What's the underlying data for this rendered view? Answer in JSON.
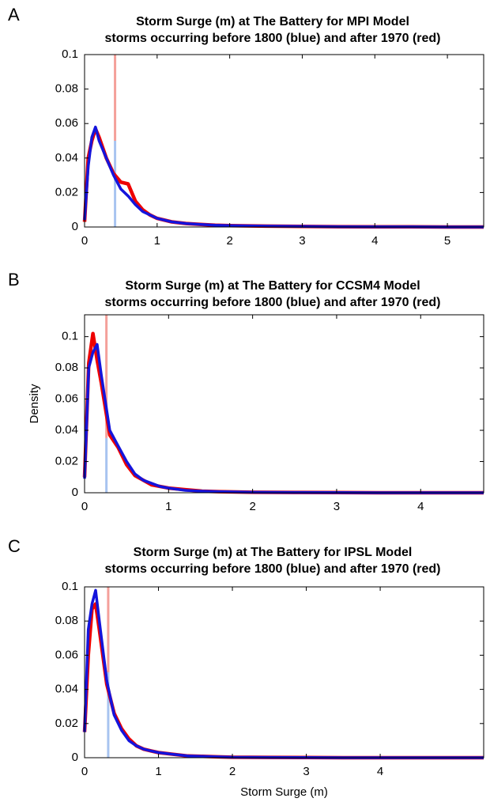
{
  "chart_data": [
    {
      "type": "line",
      "panel": "A",
      "title": [
        "Storm Surge (m) at The Battery for MPI Model",
        "storms occurring before 1800 (blue) and after 1970 (red)"
      ],
      "x": [
        0,
        0.05,
        0.1,
        0.15,
        0.2,
        0.3,
        0.4,
        0.5,
        0.6,
        0.7,
        0.8,
        0.9,
        1.0,
        1.2,
        1.4,
        1.6,
        1.8,
        2.0,
        2.5,
        3,
        3.5,
        4,
        4.5,
        5,
        5.5
      ],
      "series": [
        {
          "color": "#ee0000",
          "values": [
            0.003,
            0.04,
            0.05,
            0.057,
            0.052,
            0.04,
            0.031,
            0.026,
            0.025,
            0.015,
            0.01,
            0.007,
            0.005,
            0.003,
            0.002,
            0.0015,
            0.001,
            0.0008,
            0.0005,
            0.0003,
            0.0002,
            0.0001,
            0.0001,
            0,
            0
          ]
        },
        {
          "color": "#1414dc",
          "values": [
            0.004,
            0.035,
            0.052,
            0.058,
            0.05,
            0.04,
            0.03,
            0.022,
            0.018,
            0.013,
            0.009,
            0.007,
            0.005,
            0.003,
            0.002,
            0.0015,
            0.001,
            0.0008,
            0.0005,
            0.0003,
            0.0002,
            0.0001,
            0.0001,
            0,
            0
          ]
        }
      ],
      "vlines": [
        {
          "color": "#f4a09a",
          "x": 0.42,
          "y": [
            0.05,
            0.1
          ]
        },
        {
          "color": "#a8c4f0",
          "x": 0.42,
          "y": [
            0,
            0.05
          ]
        }
      ],
      "xlim": [
        0,
        5.5
      ],
      "xticks": [
        0,
        1,
        2,
        3,
        4,
        5
      ],
      "ylim": [
        0,
        0.1
      ],
      "yticks": [
        0,
        0.02,
        0.04,
        0.06,
        0.08,
        0.1
      ]
    },
    {
      "type": "line",
      "panel": "B",
      "title": [
        "Storm Surge (m) at The Battery for CCSM4 Model",
        "storms occurring before 1800 (blue) and after 1970 (red)"
      ],
      "ylabel": "Density",
      "x": [
        0,
        0.05,
        0.1,
        0.15,
        0.2,
        0.3,
        0.4,
        0.5,
        0.6,
        0.7,
        0.8,
        0.9,
        1.0,
        1.2,
        1.4,
        1.6,
        1.8,
        2.0,
        2.5,
        3,
        3.5,
        4,
        4.5,
        4.75
      ],
      "series": [
        {
          "color": "#ee0000",
          "values": [
            0.01,
            0.083,
            0.102,
            0.085,
            0.07,
            0.037,
            0.029,
            0.018,
            0.011,
            0.008,
            0.005,
            0.004,
            0.003,
            0.002,
            0.001,
            0.0007,
            0.0005,
            0.0003,
            0.0002,
            0.0001,
            0,
            0,
            0,
            0
          ]
        },
        {
          "color": "#1414dc",
          "values": [
            0.009,
            0.08,
            0.09,
            0.095,
            0.075,
            0.04,
            0.03,
            0.02,
            0.012,
            0.008,
            0.006,
            0.004,
            0.003,
            0.0015,
            0.001,
            0.0007,
            0.0005,
            0.0003,
            0.0002,
            0.0001,
            0,
            0,
            0,
            0
          ]
        }
      ],
      "vlines": [
        {
          "color": "#f4a09a",
          "x": 0.26,
          "y": [
            0.035,
            0.114
          ]
        },
        {
          "color": "#a8c4f0",
          "x": 0.26,
          "y": [
            0,
            0.035
          ]
        }
      ],
      "xlim": [
        0,
        4.75
      ],
      "xticks": [
        0,
        1,
        2,
        3,
        4
      ],
      "ylim": [
        0,
        0.114
      ],
      "yticks": [
        0,
        0.02,
        0.04,
        0.06,
        0.08,
        0.1
      ]
    },
    {
      "type": "line",
      "panel": "C",
      "title": [
        "Storm Surge (m) at The Battery for IPSL Model",
        "storms occurring before 1800 (blue) and after 1970 (red)"
      ],
      "xlabel": "Storm Surge (m)",
      "x": [
        0,
        0.05,
        0.1,
        0.15,
        0.2,
        0.3,
        0.4,
        0.5,
        0.6,
        0.7,
        0.8,
        0.9,
        1.0,
        1.2,
        1.4,
        1.6,
        1.8,
        2.0,
        2.5,
        3,
        3.5,
        4,
        4.5,
        5,
        5.4
      ],
      "series": [
        {
          "color": "#ee0000",
          "values": [
            0.015,
            0.06,
            0.087,
            0.09,
            0.075,
            0.043,
            0.026,
            0.017,
            0.011,
            0.007,
            0.005,
            0.004,
            0.003,
            0.002,
            0.001,
            0.0008,
            0.0005,
            0.0003,
            0.0002,
            0.0001,
            0,
            0,
            0,
            0,
            0
          ]
        },
        {
          "color": "#1414dc",
          "values": [
            0.015,
            0.075,
            0.09,
            0.098,
            0.08,
            0.045,
            0.025,
            0.016,
            0.01,
            0.007,
            0.005,
            0.004,
            0.003,
            0.002,
            0.001,
            0.0008,
            0.0005,
            0.0003,
            0.0002,
            0.0001,
            0,
            0,
            0,
            0,
            0
          ]
        }
      ],
      "vlines": [
        {
          "color": "#f4a09a",
          "x": 0.32,
          "y": [
            0.05,
            0.1
          ]
        },
        {
          "color": "#a8c4f0",
          "x": 0.32,
          "y": [
            0,
            0.05
          ]
        }
      ],
      "xlim": [
        0,
        5.4
      ],
      "xticks": [
        0,
        1,
        2,
        3,
        4
      ],
      "ylim": [
        0,
        0.1
      ],
      "yticks": [
        0,
        0.02,
        0.04,
        0.06,
        0.08,
        0.1
      ]
    }
  ]
}
